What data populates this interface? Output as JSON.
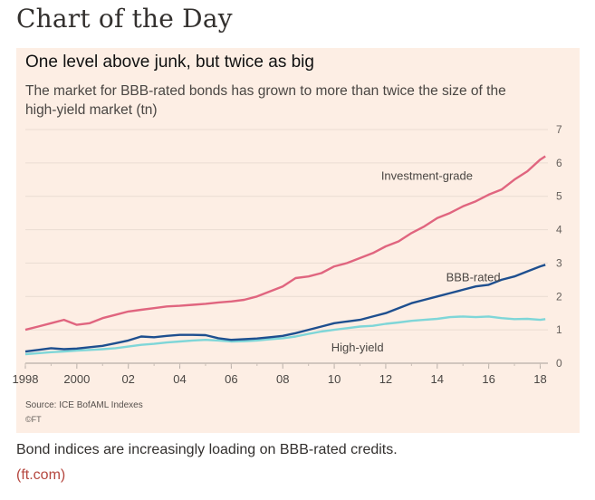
{
  "page": {
    "heading": "Chart of the Day",
    "caption": "Bond indices are increasingly loading on BBB-rated credits.",
    "link_text": "(ft.com)"
  },
  "chart_data": {
    "type": "line",
    "title": "One level above junk, but twice as big",
    "subtitle": "The market for BBB-rated bonds has grown to more than twice the size of the high-yield market (tn)",
    "source": "Source: ICE BofAML Indexes",
    "credit": "©FT",
    "ylim": [
      0,
      7
    ],
    "yticks": [
      "0",
      "1",
      "2",
      "3",
      "4",
      "5",
      "6",
      "7"
    ],
    "xlim": [
      1998,
      2018.3
    ],
    "xticks": [
      {
        "value": 1998,
        "label": "1998"
      },
      {
        "value": 2000,
        "label": "2000"
      },
      {
        "value": 2002,
        "label": "02"
      },
      {
        "value": 2004,
        "label": "04"
      },
      {
        "value": 2006,
        "label": "06"
      },
      {
        "value": 2008,
        "label": "08"
      },
      {
        "value": 2010,
        "label": "10"
      },
      {
        "value": 2012,
        "label": "12"
      },
      {
        "value": 2014,
        "label": "14"
      },
      {
        "value": 2016,
        "label": "16"
      },
      {
        "value": 2018,
        "label": "18"
      }
    ],
    "grid": true,
    "series": [
      {
        "name": "Investment-grade",
        "color": "#e0657f",
        "x": [
          1998.0,
          1998.5,
          1999.0,
          1999.5,
          2000.0,
          2000.5,
          2001.0,
          2001.5,
          2002.0,
          2002.5,
          2003.0,
          2003.5,
          2004.0,
          2004.5,
          2005.0,
          2005.5,
          2006.0,
          2006.5,
          2007.0,
          2007.5,
          2008.0,
          2008.5,
          2009.0,
          2009.5,
          2010.0,
          2010.5,
          2011.0,
          2011.5,
          2012.0,
          2012.5,
          2013.0,
          2013.5,
          2014.0,
          2014.5,
          2015.0,
          2015.5,
          2016.0,
          2016.5,
          2017.0,
          2017.5,
          2018.0,
          2018.2
        ],
        "values": [
          1.0,
          1.1,
          1.2,
          1.3,
          1.15,
          1.2,
          1.35,
          1.45,
          1.55,
          1.6,
          1.65,
          1.7,
          1.72,
          1.75,
          1.78,
          1.82,
          1.85,
          1.9,
          2.0,
          2.15,
          2.3,
          2.55,
          2.6,
          2.7,
          2.9,
          3.0,
          3.15,
          3.3,
          3.5,
          3.65,
          3.9,
          4.1,
          4.35,
          4.5,
          4.7,
          4.85,
          5.05,
          5.2,
          5.5,
          5.75,
          6.1,
          6.2
        ]
      },
      {
        "name": "BBB-rated",
        "color": "#1e4f8f",
        "x": [
          1998.0,
          1998.5,
          1999.0,
          1999.5,
          2000.0,
          2000.5,
          2001.0,
          2001.5,
          2002.0,
          2002.5,
          2003.0,
          2003.5,
          2004.0,
          2004.5,
          2005.0,
          2005.5,
          2006.0,
          2006.5,
          2007.0,
          2007.5,
          2008.0,
          2008.5,
          2009.0,
          2009.5,
          2010.0,
          2010.5,
          2011.0,
          2011.5,
          2012.0,
          2012.5,
          2013.0,
          2013.5,
          2014.0,
          2014.5,
          2015.0,
          2015.5,
          2016.0,
          2016.5,
          2017.0,
          2017.5,
          2018.0,
          2018.2
        ],
        "values": [
          0.35,
          0.4,
          0.45,
          0.42,
          0.44,
          0.48,
          0.52,
          0.6,
          0.68,
          0.8,
          0.78,
          0.82,
          0.85,
          0.85,
          0.84,
          0.75,
          0.7,
          0.72,
          0.74,
          0.78,
          0.82,
          0.9,
          1.0,
          1.1,
          1.2,
          1.25,
          1.3,
          1.4,
          1.5,
          1.65,
          1.8,
          1.9,
          2.0,
          2.1,
          2.2,
          2.3,
          2.35,
          2.5,
          2.6,
          2.75,
          2.9,
          2.95
        ]
      },
      {
        "name": "High-yield",
        "color": "#7fd6d8",
        "x": [
          1998.0,
          1998.5,
          1999.0,
          1999.5,
          2000.0,
          2000.5,
          2001.0,
          2001.5,
          2002.0,
          2002.5,
          2003.0,
          2003.5,
          2004.0,
          2004.5,
          2005.0,
          2005.5,
          2006.0,
          2006.5,
          2007.0,
          2007.5,
          2008.0,
          2008.5,
          2009.0,
          2009.5,
          2010.0,
          2010.5,
          2011.0,
          2011.5,
          2012.0,
          2012.5,
          2013.0,
          2013.5,
          2014.0,
          2014.5,
          2015.0,
          2015.5,
          2016.0,
          2016.5,
          2017.0,
          2017.5,
          2018.0,
          2018.2
        ],
        "values": [
          0.27,
          0.3,
          0.33,
          0.35,
          0.38,
          0.4,
          0.42,
          0.45,
          0.5,
          0.55,
          0.58,
          0.62,
          0.65,
          0.68,
          0.7,
          0.68,
          0.65,
          0.66,
          0.68,
          0.72,
          0.75,
          0.8,
          0.88,
          0.95,
          1.0,
          1.05,
          1.1,
          1.12,
          1.18,
          1.22,
          1.27,
          1.3,
          1.33,
          1.38,
          1.4,
          1.38,
          1.4,
          1.35,
          1.32,
          1.33,
          1.3,
          1.32
        ]
      }
    ],
    "annotations": [
      {
        "series": "Investment-grade",
        "text": "Investment-grade"
      },
      {
        "series": "BBB-rated",
        "text": "BBB-rated"
      },
      {
        "series": "High-yield",
        "text": "High-yield"
      }
    ]
  }
}
